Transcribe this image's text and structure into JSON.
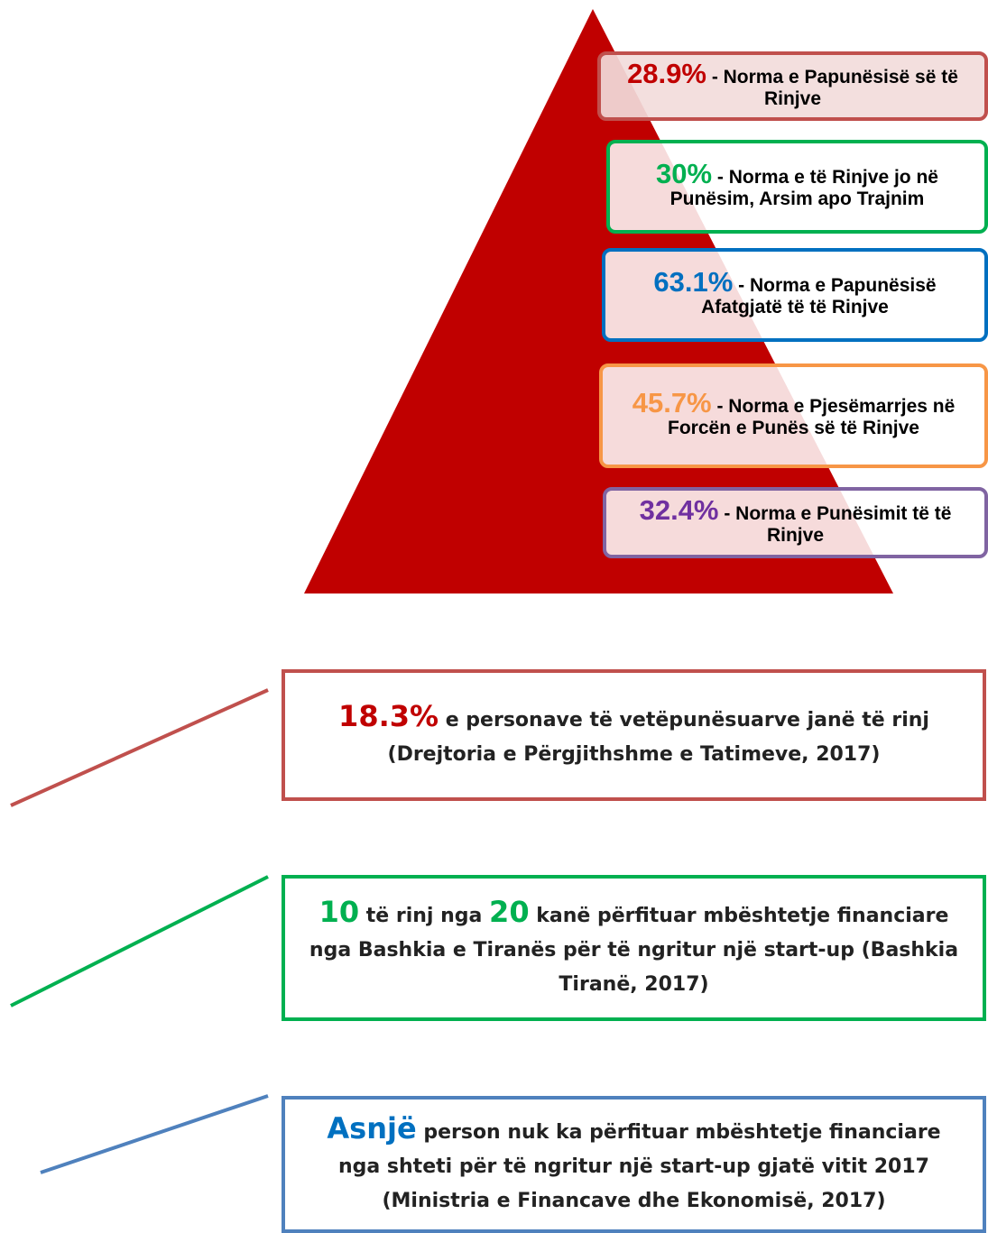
{
  "pyramid": {
    "color": "#c00000",
    "items": [
      {
        "value": "28.9%",
        "text": "- Norma e Papunësisë së të Rinjve",
        "color": "#c00000",
        "border": "#c0504d"
      },
      {
        "value": "30%",
        "text": "- Norma e të Rinjve jo në Punësim, Arsim apo Trajnim",
        "color": "#00b050",
        "border": "#00b050"
      },
      {
        "value": "63.1%",
        "text": "- Norma e Papunësisë Afatgjatë të të Rinjve",
        "color": "#0070c0",
        "border": "#0070c0"
      },
      {
        "value": "45.7%",
        "text": "- Norma e Pjesëmarrjes në Forcën e Punës së të Rinjve",
        "color": "#f79646",
        "border": "#f79646"
      },
      {
        "value": "32.4%",
        "text": "- Norma e Punësimit të të Rinjve",
        "color": "#7030a0",
        "border": "#8064a2"
      }
    ]
  },
  "facts": [
    {
      "color": "#c0504d",
      "accent": "#c00000",
      "parts": [
        {
          "text": "18.3%",
          "highlight": true
        },
        {
          "text": " e personave të vetëpunësuarve janë të rinj (Drejtoria e Përgjithshme e Tatimeve, 2017)",
          "highlight": false
        }
      ]
    },
    {
      "color": "#00b050",
      "accent": "#00b050",
      "parts": [
        {
          "text": "10",
          "highlight": true
        },
        {
          "text": " të rinj nga ",
          "highlight": false
        },
        {
          "text": "20",
          "highlight": true
        },
        {
          "text": " kanë përfituar mbështetje financiare nga Bashkia e Tiranës për të ngritur një start-up (Bashkia Tiranë, 2017)",
          "highlight": false
        }
      ]
    },
    {
      "color": "#4f81bd",
      "accent": "#0070c0",
      "parts": [
        {
          "text": "Asnjë",
          "highlight": true
        },
        {
          "text": " person nuk ka përfituar mbështetje financiare nga shteti për të ngritur një start-up gjatë vitit 2017 (Ministria e Financave dhe Ekonomisë, 2017)",
          "highlight": false
        }
      ]
    }
  ]
}
